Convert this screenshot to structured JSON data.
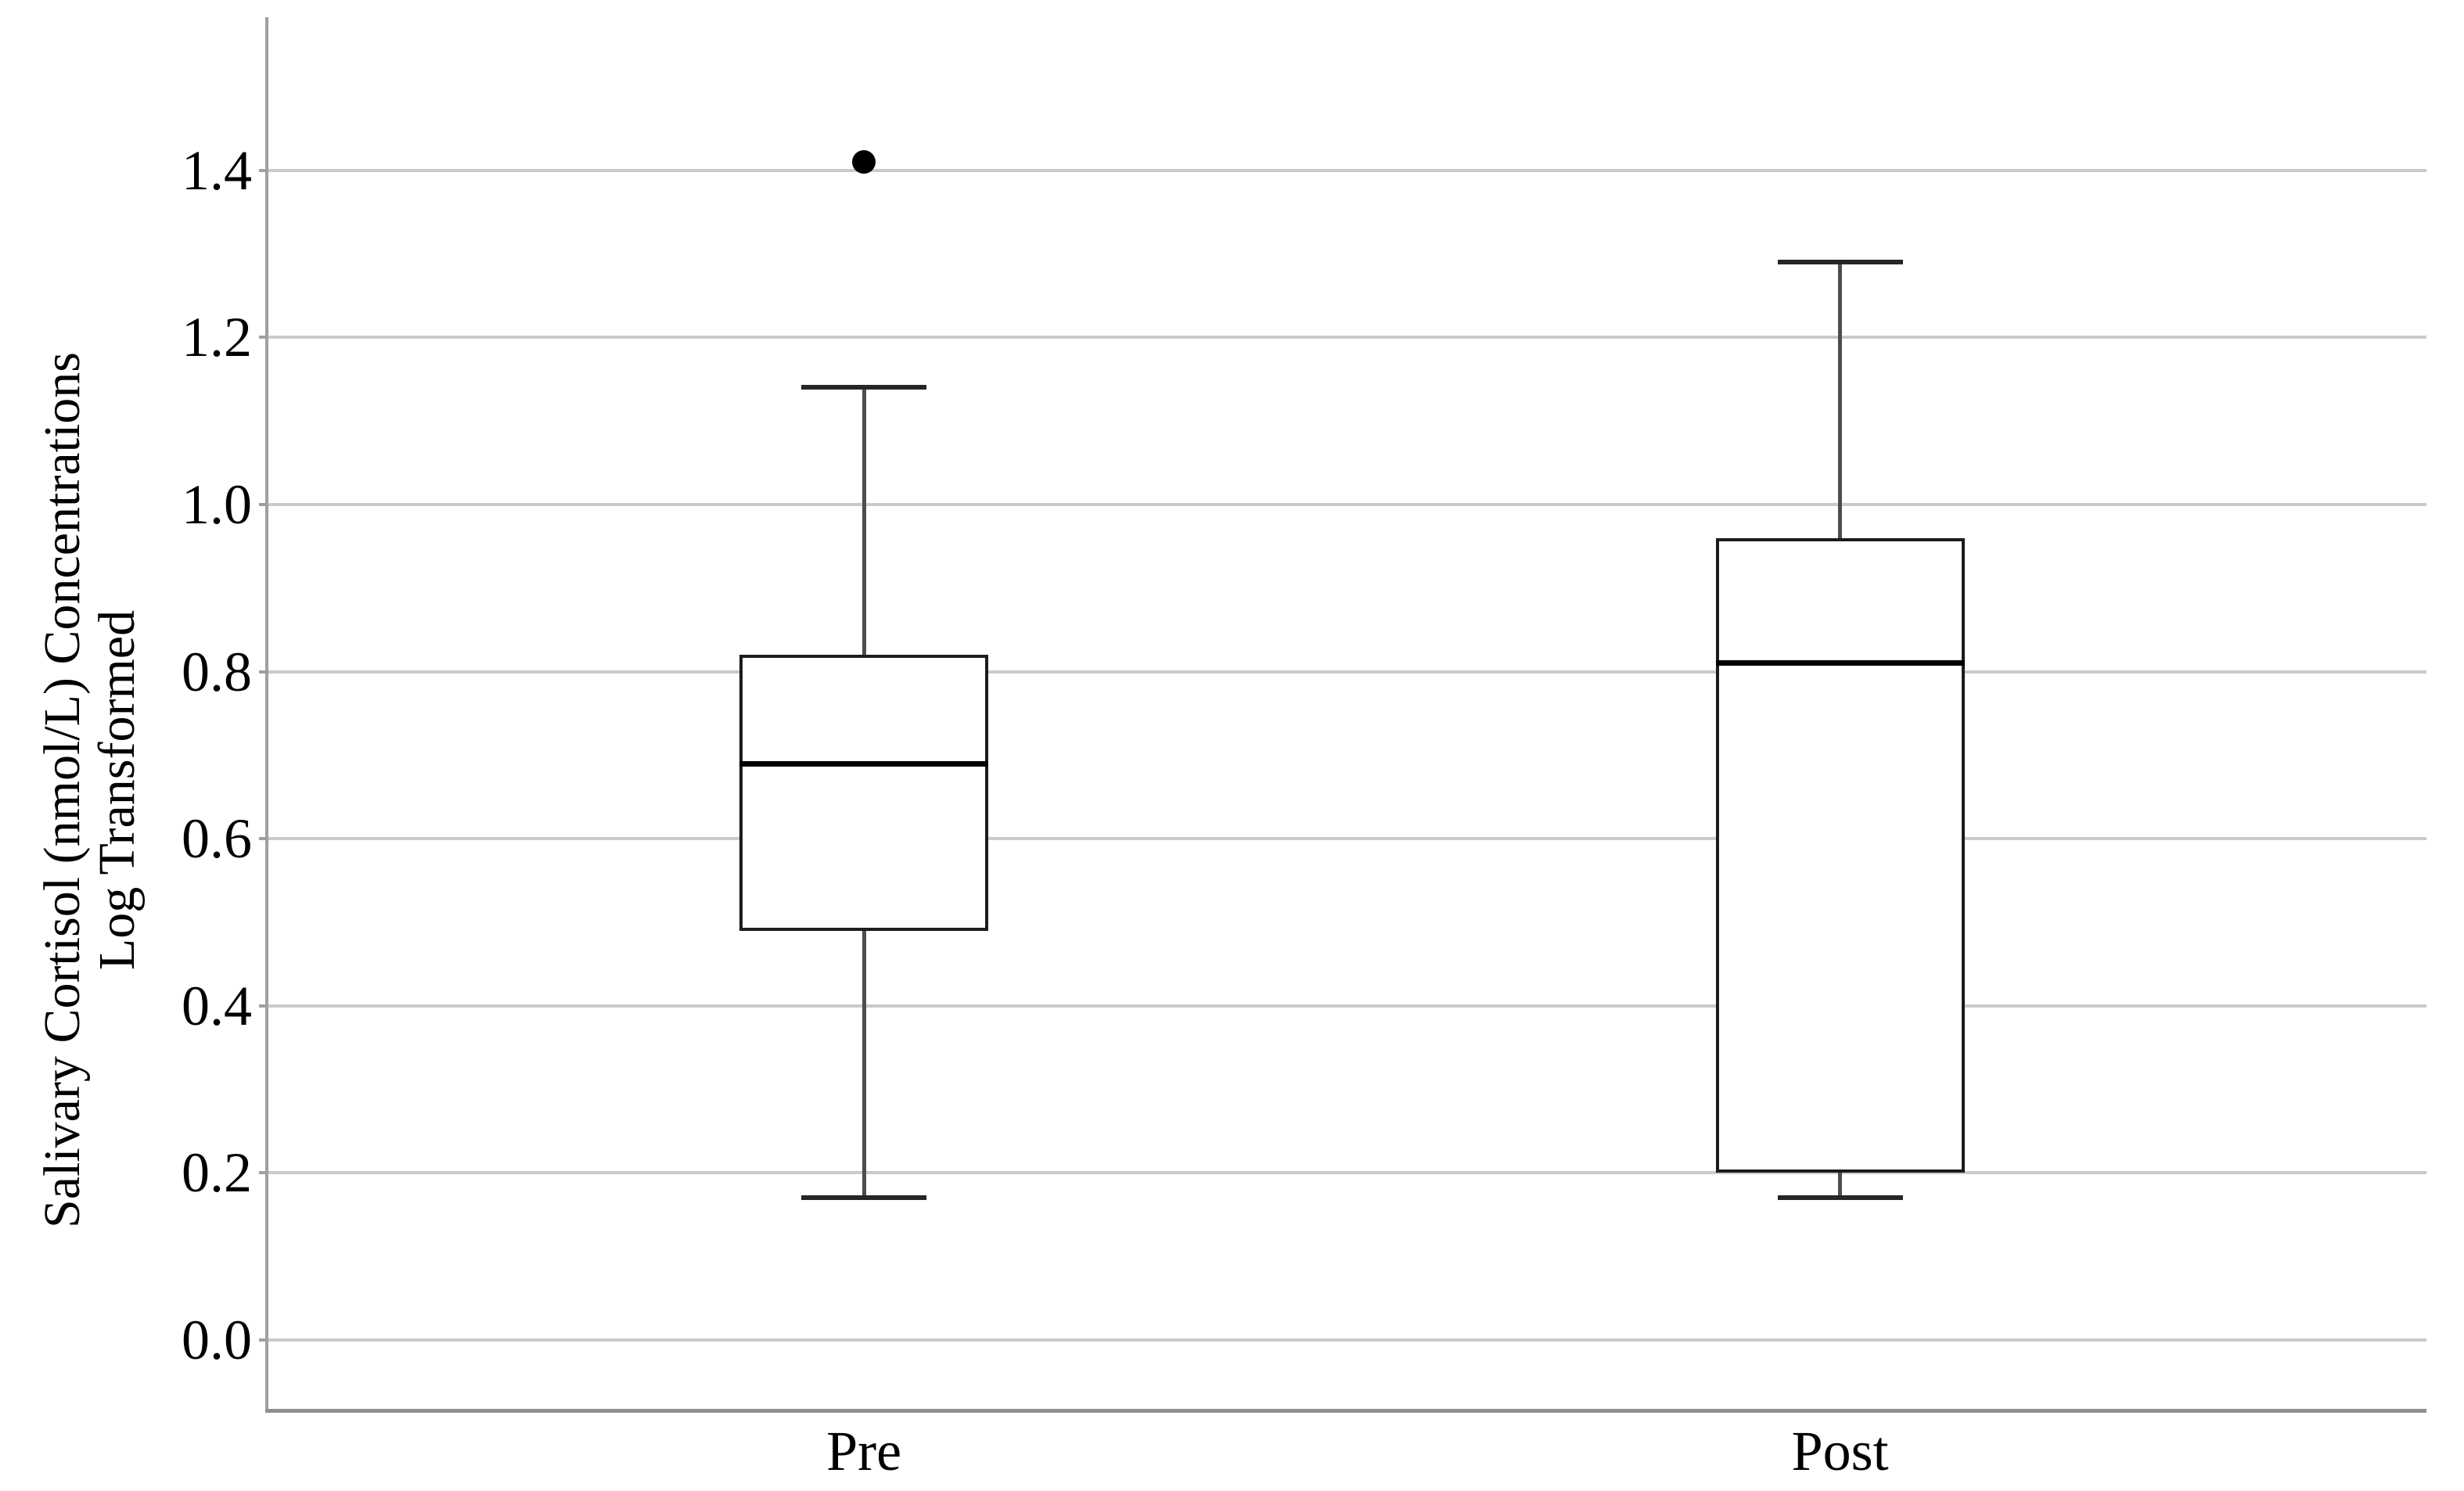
{
  "figure": {
    "background": "#ffffff",
    "text_color": "#000000",
    "grid_color": "#cacaca",
    "axis_color": "#9f9f9f",
    "baseline_color": "#8f8f8f",
    "box_border_color": "#1c1c1c",
    "median_color": "#000000",
    "whisker_color": "#4d4d4d",
    "outlier_color": "#000000"
  },
  "chart_data": {
    "type": "boxplot",
    "title": "",
    "xlabel": "",
    "ylabel": "Salivary Cortisol (nmol/L) Concentrations / Log Transformed",
    "ylabel_lines": [
      "Salivary Cortisol (nmol/L) Concentrations",
      "Log Transformed"
    ],
    "categories": [
      "Pre",
      "Post"
    ],
    "ytick_labels": [
      "0.0",
      "0.2",
      "0.4",
      "0.6",
      "0.8",
      "1.0",
      "1.2",
      "1.4"
    ],
    "yticks": [
      0.0,
      0.2,
      0.4,
      0.6,
      0.8,
      1.0,
      1.2,
      1.4
    ],
    "ylim": [
      -0.08,
      1.58
    ],
    "grid": true,
    "legend_position": "none",
    "series": [
      {
        "name": "Pre",
        "whisker_low": 0.17,
        "q1": 0.49,
        "median": 0.69,
        "q3": 0.82,
        "whisker_high": 1.14,
        "outliers": [
          1.41
        ]
      },
      {
        "name": "Post",
        "whisker_low": 0.17,
        "q1": 0.2,
        "median": 0.81,
        "q3": 0.96,
        "whisker_high": 1.29,
        "outliers": []
      }
    ]
  }
}
